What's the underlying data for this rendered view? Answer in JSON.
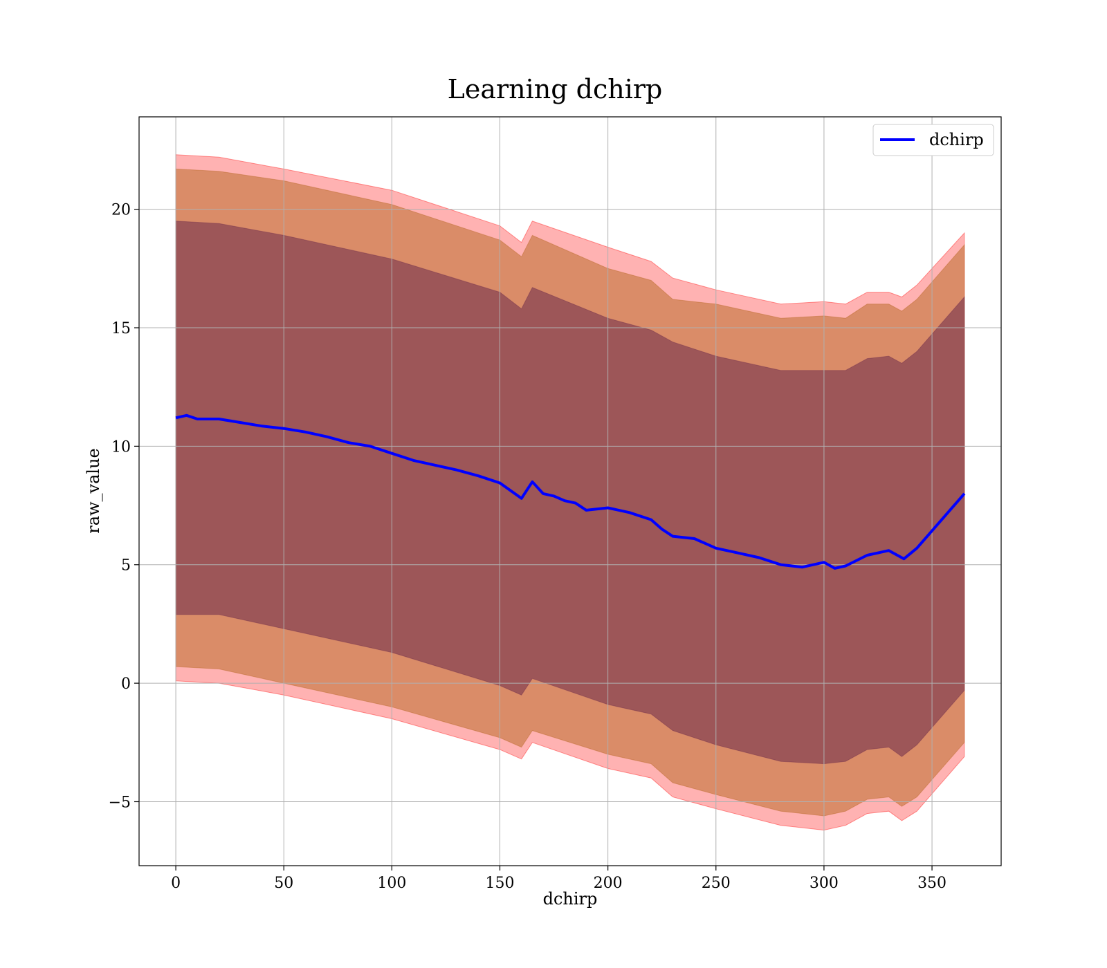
{
  "chart_data": {
    "type": "line",
    "title": "Learning dchirp",
    "xlabel": "dchirp",
    "ylabel": "raw_value",
    "xlim": [
      -17,
      382
    ],
    "ylim": [
      -7.7,
      23.9
    ],
    "xticks": [
      0,
      50,
      100,
      150,
      200,
      250,
      300,
      350
    ],
    "yticks": [
      -5,
      0,
      5,
      10,
      15,
      20
    ],
    "ytick_labels": [
      "−5",
      "0",
      "5",
      "10",
      "15",
      "20"
    ],
    "grid": true,
    "legend_position": "top-right",
    "colors": {
      "line": "#0000ff",
      "band_outer": "#ff0000",
      "band_mid": "#b5651d",
      "band_inner": "#6b2a4a",
      "grid": "#b0b0b0"
    },
    "series": [
      {
        "name": "dchirp",
        "x": [
          0,
          5,
          10,
          20,
          30,
          40,
          50,
          60,
          70,
          80,
          90,
          100,
          110,
          120,
          130,
          140,
          150,
          160,
          165,
          170,
          175,
          180,
          185,
          190,
          200,
          210,
          220,
          225,
          230,
          240,
          250,
          260,
          270,
          280,
          290,
          300,
          305,
          310,
          320,
          330,
          337,
          343,
          365
        ],
        "values": [
          11.2,
          11.3,
          11.15,
          11.15,
          11.0,
          10.85,
          10.75,
          10.6,
          10.4,
          10.15,
          10.0,
          9.7,
          9.4,
          9.2,
          9.0,
          8.75,
          8.45,
          7.8,
          8.5,
          8.0,
          7.9,
          7.7,
          7.6,
          7.3,
          7.4,
          7.2,
          6.9,
          6.5,
          6.2,
          6.1,
          5.7,
          5.5,
          5.3,
          5.0,
          4.9,
          5.1,
          4.85,
          4.95,
          5.4,
          5.6,
          5.25,
          5.7,
          8.0
        ]
      }
    ],
    "bands": [
      {
        "level": "outer",
        "x": [
          0,
          20,
          50,
          100,
          150,
          160,
          165,
          200,
          220,
          230,
          250,
          280,
          300,
          310,
          320,
          330,
          336,
          343,
          365
        ],
        "upper": [
          22.3,
          22.2,
          21.7,
          20.8,
          19.3,
          18.6,
          19.5,
          18.4,
          17.8,
          17.1,
          16.6,
          16.0,
          16.1,
          16.0,
          16.5,
          16.5,
          16.3,
          16.8,
          19.0
        ],
        "lower": [
          0.1,
          0.0,
          -0.5,
          -1.5,
          -2.8,
          -3.2,
          -2.5,
          -3.6,
          -4.0,
          -4.8,
          -5.3,
          -6.0,
          -6.2,
          -6.0,
          -5.5,
          -5.4,
          -5.8,
          -5.4,
          -3.1
        ]
      },
      {
        "level": "mid",
        "x": [
          0,
          20,
          50,
          100,
          150,
          160,
          165,
          200,
          220,
          230,
          250,
          280,
          300,
          310,
          320,
          330,
          336,
          343,
          365
        ],
        "upper": [
          21.7,
          21.6,
          21.2,
          20.2,
          18.7,
          18.0,
          18.9,
          17.5,
          17.0,
          16.2,
          16.0,
          15.4,
          15.5,
          15.4,
          16.0,
          16.0,
          15.7,
          16.2,
          18.5
        ],
        "lower": [
          0.7,
          0.6,
          0.0,
          -1.0,
          -2.3,
          -2.7,
          -2.0,
          -3.0,
          -3.4,
          -4.2,
          -4.7,
          -5.4,
          -5.6,
          -5.4,
          -4.9,
          -4.8,
          -5.2,
          -4.8,
          -2.5
        ]
      },
      {
        "level": "inner",
        "x": [
          0,
          20,
          50,
          100,
          150,
          160,
          165,
          200,
          220,
          230,
          250,
          280,
          300,
          310,
          320,
          330,
          336,
          343,
          365
        ],
        "upper": [
          19.5,
          19.4,
          18.9,
          17.9,
          16.5,
          15.8,
          16.7,
          15.4,
          14.9,
          14.4,
          13.8,
          13.2,
          13.2,
          13.2,
          13.7,
          13.8,
          13.5,
          14.0,
          16.3
        ],
        "lower": [
          2.9,
          2.9,
          2.3,
          1.3,
          -0.1,
          -0.5,
          0.2,
          -0.9,
          -1.3,
          -2.0,
          -2.6,
          -3.3,
          -3.4,
          -3.3,
          -2.8,
          -2.7,
          -3.1,
          -2.6,
          -0.3
        ]
      }
    ]
  }
}
